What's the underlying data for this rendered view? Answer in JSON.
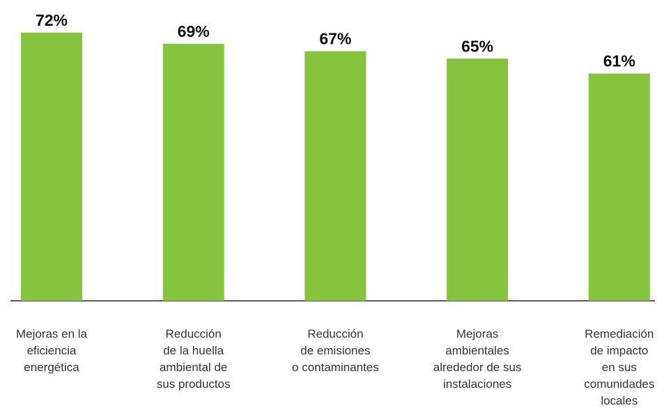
{
  "chart_data": {
    "type": "bar",
    "categories": [
      "Mejoras en la\neficiencia\nenergética",
      "Reducción\nde la huella\nambiental de\nsus productos",
      "Reducción\nde emisiones\no contaminantes",
      "Mejoras\nambientales\nalrededor de sus\ninstalaciones",
      "Remediación\nde impacto\nen sus\ncomunidades\nlocales"
    ],
    "values": [
      72,
      69,
      67,
      65,
      61
    ],
    "value_labels": [
      "72%",
      "69%",
      "67%",
      "65%",
      "61%"
    ],
    "color": "#86c440"
  }
}
